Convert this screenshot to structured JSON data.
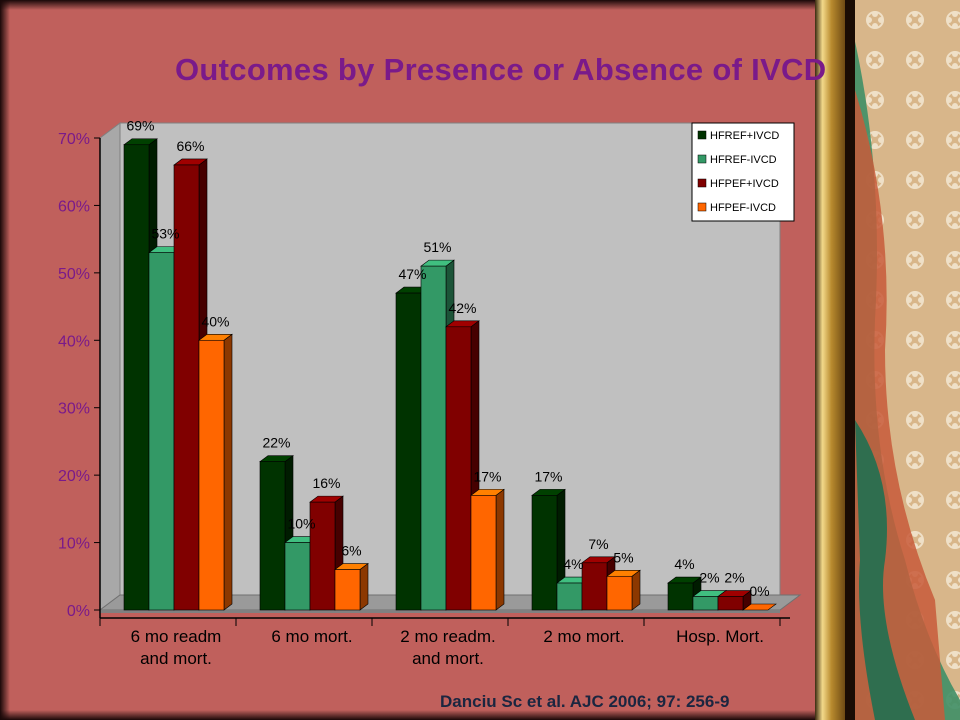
{
  "slide": {
    "title": "Outcomes by Presence or Absence of IVCD",
    "citation": "Danciu Sc et al. AJC 2006; 97: 256-9"
  },
  "colors": {
    "background": "#c0605c",
    "title": "#7a1a8a",
    "plot_area": "#c0c0c0"
  },
  "chart_data": {
    "type": "bar",
    "title": "Outcomes by Presence or Absence of IVCD",
    "categories": [
      [
        "6 mo readm",
        "and mort."
      ],
      [
        "6 mo mort."
      ],
      [
        "2 mo readm.",
        "and mort."
      ],
      [
        "2 mo mort."
      ],
      [
        "Hosp. Mort."
      ]
    ],
    "series": [
      {
        "name": "HFREF+IVCD",
        "color": "#003300",
        "values": [
          69,
          22,
          47,
          17,
          4
        ]
      },
      {
        "name": "HFREF-IVCD",
        "color": "#339966",
        "values": [
          53,
          10,
          51,
          4,
          2
        ]
      },
      {
        "name": "HFPEF+IVCD",
        "color": "#800000",
        "values": [
          66,
          16,
          42,
          7,
          2
        ]
      },
      {
        "name": "HFPEF-IVCD",
        "color": "#ff6600",
        "values": [
          40,
          6,
          17,
          5,
          0
        ]
      }
    ],
    "data_labels": [
      [
        "69%",
        "22%",
        "47%",
        "17%",
        "4%"
      ],
      [
        "53%",
        "10%",
        "51%",
        "4%",
        "2%"
      ],
      [
        "66%",
        "16%",
        "42%",
        "7%",
        "2%"
      ],
      [
        "40%",
        "6%",
        "17%",
        "5%",
        "0%"
      ]
    ],
    "yticks": [
      "0%",
      "10%",
      "20%",
      "30%",
      "40%",
      "50%",
      "60%",
      "70%"
    ],
    "ylim": [
      0,
      70
    ],
    "xlabel": "",
    "ylabel": "",
    "legend": "top-right",
    "grid": false
  }
}
